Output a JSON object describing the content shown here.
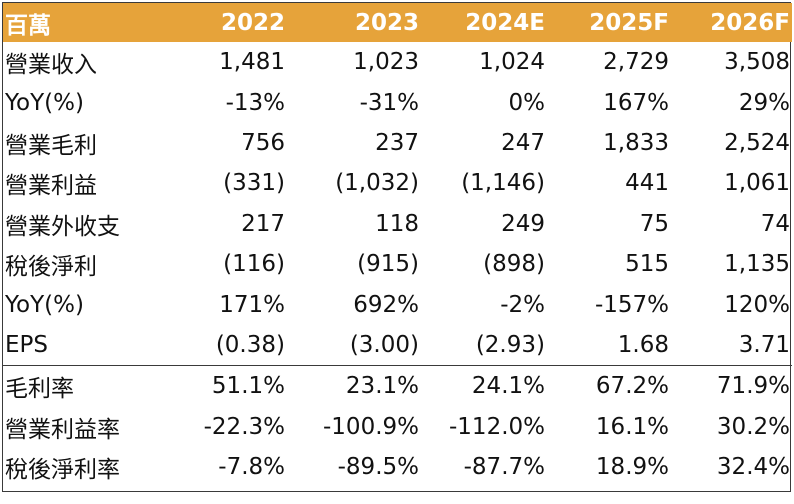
{
  "header": {
    "unit_label": "百萬",
    "years": [
      "2022",
      "2023",
      "2024E",
      "2025F",
      "2026F"
    ]
  },
  "rows": [
    {
      "label": "營業收入",
      "values": [
        "1,481",
        "1,023",
        "1,024",
        "2,729",
        "3,508"
      ]
    },
    {
      "label": "YoY(%)",
      "values": [
        "-13%",
        "-31%",
        "0%",
        "167%",
        "29%"
      ]
    },
    {
      "label": "營業毛利",
      "values": [
        "756",
        "237",
        "247",
        "1,833",
        "2,524"
      ]
    },
    {
      "label": "營業利益",
      "values": [
        "(331)",
        "(1,032)",
        "(1,146)",
        "441",
        "1,061"
      ]
    },
    {
      "label": "營業外收支",
      "values": [
        "217",
        "118",
        "249",
        "75",
        "74"
      ]
    },
    {
      "label": "稅後淨利",
      "values": [
        "(116)",
        "(915)",
        "(898)",
        "515",
        "1,135"
      ]
    },
    {
      "label": "YoY(%)",
      "values": [
        "171%",
        "692%",
        "-2%",
        "-157%",
        "120%"
      ]
    },
    {
      "label": "EPS",
      "values": [
        "(0.38)",
        "(3.00)",
        "(2.93)",
        "1.68",
        "3.71"
      ]
    },
    {
      "label": "毛利率",
      "values": [
        "51.1%",
        "23.1%",
        "24.1%",
        "67.2%",
        "71.9%"
      ]
    },
    {
      "label": "營業利益率",
      "values": [
        "-22.3%",
        "-100.9%",
        "-112.0%",
        "16.1%",
        "30.2%"
      ]
    },
    {
      "label": "稅後淨利率",
      "values": [
        "-7.8%",
        "-89.5%",
        "-87.7%",
        "18.9%",
        "32.4%"
      ]
    }
  ],
  "colors": {
    "header_bg": "#E6A33A",
    "header_text": "#ffffff",
    "border": "#3a3a3a"
  }
}
